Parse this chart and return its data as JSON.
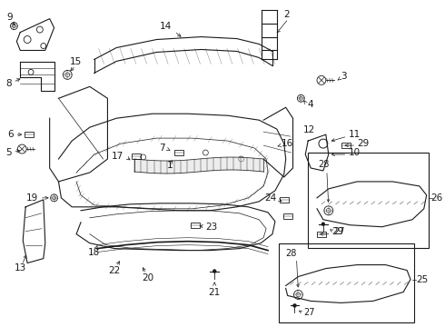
{
  "bg_color": "#ffffff",
  "line_color": "#1a1a1a",
  "fig_width": 4.9,
  "fig_height": 3.6,
  "dpi": 100,
  "fs": 7.0
}
